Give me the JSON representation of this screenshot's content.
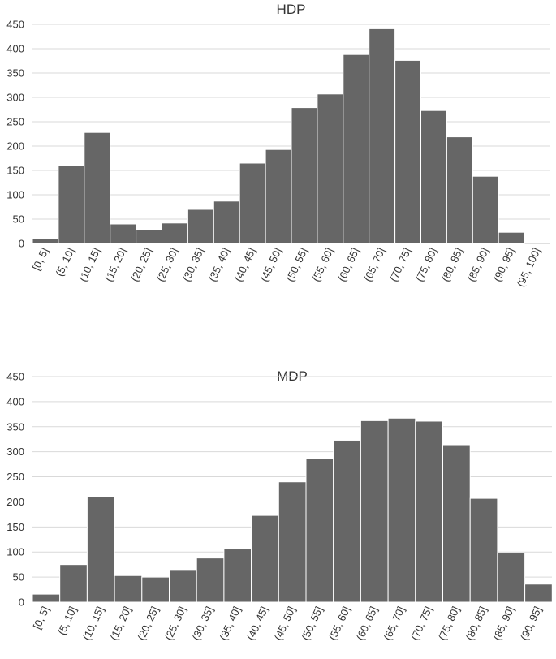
{
  "colors": {
    "bar": "#666666",
    "grid": "#d9d9d9",
    "text": "#333333",
    "background": "#ffffff"
  },
  "chart_data": [
    {
      "type": "bar",
      "title": "HDP",
      "xlabel": "",
      "ylabel": "",
      "ylim": [
        0,
        450
      ],
      "yticks": [
        0,
        50,
        100,
        150,
        200,
        250,
        300,
        350,
        400,
        450
      ],
      "grid": true,
      "legend": "none",
      "categories": [
        "[0, 5]",
        "(5, 10]",
        "(10, 15]",
        "(15, 20]",
        "(20, 25]",
        "(25, 30]",
        "(30, 35]",
        "(35, 40]",
        "(40, 45]",
        "(45, 50]",
        "(50, 55]",
        "(55, 60]",
        "(60, 65]",
        "(65, 70]",
        "(70, 75]",
        "(75, 80]",
        "(80, 85]",
        "(85, 90]",
        "(90, 95]",
        "(95, 100]"
      ],
      "values": [
        10,
        160,
        228,
        40,
        28,
        42,
        70,
        87,
        165,
        193,
        279,
        307,
        388,
        441,
        376,
        273,
        219,
        138,
        23,
        0
      ]
    },
    {
      "type": "bar",
      "title": "MDP",
      "xlabel": "",
      "ylabel": "",
      "ylim": [
        0,
        450
      ],
      "yticks": [
        0,
        50,
        100,
        150,
        200,
        250,
        300,
        350,
        400,
        450
      ],
      "grid": true,
      "legend": "none",
      "categories": [
        "[0, 5]",
        "(5, 10]",
        "(10, 15]",
        "(15, 20]",
        "(20, 25]",
        "(25, 30]",
        "(30, 35]",
        "(35, 40]",
        "(40, 45]",
        "(45, 50]",
        "(50, 55]",
        "(55, 60]",
        "(60, 65]",
        "(65, 70]",
        "(70, 75]",
        "(75, 80]",
        "(80, 85]",
        "(85, 90]",
        "(90, 95]"
      ],
      "values": [
        16,
        75,
        210,
        53,
        50,
        65,
        88,
        106,
        173,
        240,
        287,
        323,
        362,
        367,
        361,
        314,
        207,
        98,
        36
      ]
    }
  ]
}
